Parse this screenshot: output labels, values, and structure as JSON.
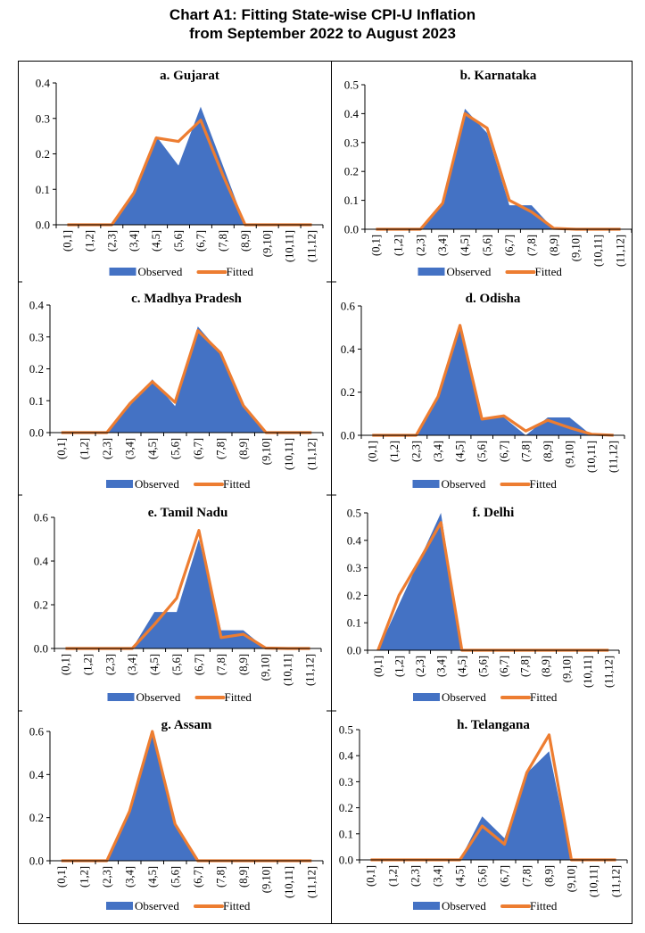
{
  "title_lines": [
    "Chart A1: Fitting State-wise CPI-U Inflation",
    "from September 2022 to August 2023"
  ],
  "colors": {
    "observed": "#4472C4",
    "fitted": "#ED7D31"
  },
  "chart_data": [
    {
      "type": "area",
      "title": "a. Gujarat",
      "categories": [
        "(0,1]",
        "(1,2]",
        "(2,3]",
        "(3,4]",
        "(4,5]",
        "(5,6]",
        "(6,7]",
        "(7,8]",
        "(8,9]",
        "(9,10]",
        "(10,11]",
        "(11,12]"
      ],
      "ylim": [
        0,
        0.4
      ],
      "yticks": [
        "0.0",
        "0.1",
        "0.2",
        "0.3",
        "0.4"
      ],
      "ytick_values": [
        0,
        0.1,
        0.2,
        0.3,
        0.4
      ],
      "series": [
        {
          "name": "Observed",
          "type": "area",
          "values": [
            0,
            0,
            0,
            0.083,
            0.25,
            0.167,
            0.333,
            0.167,
            0,
            0,
            0,
            0
          ]
        },
        {
          "name": "Fitted",
          "type": "line",
          "values": [
            0,
            0,
            0,
            0.09,
            0.245,
            0.235,
            0.295,
            0.14,
            0,
            0,
            0,
            0
          ]
        }
      ],
      "legend": [
        "Observed",
        "Fitted"
      ],
      "legend_position": "bottom"
    },
    {
      "type": "area",
      "title": "b. Karnataka",
      "categories": [
        "(0,1]",
        "(1,2]",
        "(2,3]",
        "(3,4]",
        "(4,5]",
        "(5,6]",
        "(6,7]",
        "(7,8]",
        "(8,9]",
        "(9,10]",
        "(10,11]",
        "(11,12]"
      ],
      "ylim": [
        0,
        0.5
      ],
      "yticks": [
        "0.0",
        "0.1",
        "0.2",
        "0.3",
        "0.4",
        "0.5"
      ],
      "ytick_values": [
        0,
        0.1,
        0.2,
        0.3,
        0.4,
        0.5
      ],
      "series": [
        {
          "name": "Observed",
          "type": "area",
          "values": [
            0,
            0,
            0,
            0.083,
            0.417,
            0.333,
            0.083,
            0.083,
            0,
            0,
            0,
            0
          ]
        },
        {
          "name": "Fitted",
          "type": "line",
          "values": [
            0,
            0,
            0,
            0.09,
            0.4,
            0.35,
            0.1,
            0.06,
            0.003,
            0,
            0,
            0
          ]
        }
      ],
      "legend": [
        "Observed",
        "Fitted"
      ],
      "legend_position": "bottom"
    },
    {
      "type": "area",
      "title": "c. Madhya Pradesh",
      "categories": [
        "(0,1]",
        "(1,2]",
        "(2,3]",
        "(3,4]",
        "(4,5]",
        "(5,6]",
        "(6,7]",
        "(7,8]",
        "(8,9]",
        "(9,10]",
        "(10,11]",
        "(11,12]"
      ],
      "ylim": [
        0,
        0.4
      ],
      "yticks": [
        "0.0",
        "0.1",
        "0.2",
        "0.3",
        "0.4"
      ],
      "ytick_values": [
        0,
        0.1,
        0.2,
        0.3,
        0.4
      ],
      "series": [
        {
          "name": "Observed",
          "type": "area",
          "values": [
            0,
            0,
            0,
            0.083,
            0.167,
            0.083,
            0.333,
            0.25,
            0.083,
            0,
            0,
            0
          ]
        },
        {
          "name": "Fitted",
          "type": "line",
          "values": [
            0,
            0,
            0,
            0.09,
            0.16,
            0.095,
            0.32,
            0.25,
            0.085,
            0,
            0,
            0
          ]
        }
      ],
      "legend": [
        "Observed",
        "Fitted"
      ],
      "legend_position": "bottom"
    },
    {
      "type": "area",
      "title": "d. Odisha",
      "categories": [
        "(0,1]",
        "(1,2]",
        "(2,3]",
        "(3,4]",
        "(4,5]",
        "(5,6]",
        "(6,7]",
        "(7,8]",
        "(8,9]",
        "(9,10]",
        "(10,11]",
        "(11,12]"
      ],
      "ylim": [
        0,
        0.6
      ],
      "yticks": [
        "0.0",
        "0.2",
        "0.4",
        "0.6"
      ],
      "ytick_values": [
        0,
        0.2,
        0.4,
        0.6
      ],
      "series": [
        {
          "name": "Observed",
          "type": "area",
          "values": [
            0,
            0,
            0,
            0.167,
            0.5,
            0.083,
            0.083,
            0,
            0.083,
            0.083,
            0,
            0
          ]
        },
        {
          "name": "Fitted",
          "type": "line",
          "values": [
            0,
            0,
            0,
            0.18,
            0.51,
            0.075,
            0.09,
            0.02,
            0.07,
            0.035,
            0.005,
            0
          ]
        }
      ],
      "legend": [
        "Observed",
        "Fitted"
      ],
      "legend_position": "bottom"
    },
    {
      "type": "area",
      "title": "e. Tamil Nadu",
      "categories": [
        "(0,1]",
        "(1,2]",
        "(2,3]",
        "(3,4]",
        "(4,5]",
        "(5,6]",
        "(6,7]",
        "(7,8]",
        "(8,9]",
        "(9,10]",
        "(10,11]",
        "(11,12]"
      ],
      "ylim": [
        0,
        0.6
      ],
      "yticks": [
        "0.0",
        "0.2",
        "0.4",
        "0.6"
      ],
      "ytick_values": [
        0,
        0.2,
        0.4,
        0.6
      ],
      "series": [
        {
          "name": "Observed",
          "type": "area",
          "values": [
            0,
            0,
            0,
            0,
            0.167,
            0.167,
            0.5,
            0.083,
            0.083,
            0,
            0,
            0
          ]
        },
        {
          "name": "Fitted",
          "type": "line",
          "values": [
            0,
            0,
            0,
            0,
            0.11,
            0.23,
            0.54,
            0.05,
            0.065,
            0.002,
            0,
            0
          ]
        }
      ],
      "legend": [
        "Observed",
        "Fitted"
      ],
      "legend_position": "bottom"
    },
    {
      "type": "area",
      "title": "f. Delhi",
      "categories": [
        "(0,1]",
        "(1,2]",
        "(2,3]",
        "(3,4]",
        "(4,5]",
        "(5,6]",
        "(6,7]",
        "(7,8]",
        "(8,9]",
        "(9,10]",
        "(10,11]",
        "(11,12]"
      ],
      "ylim": [
        0,
        0.5
      ],
      "yticks": [
        "0.0",
        "0.1",
        "0.2",
        "0.3",
        "0.4",
        "0.5"
      ],
      "ytick_values": [
        0,
        0.1,
        0.2,
        0.3,
        0.4,
        0.5
      ],
      "series": [
        {
          "name": "Observed",
          "type": "area",
          "values": [
            0,
            0.167,
            0.333,
            0.5,
            0,
            0,
            0,
            0,
            0,
            0,
            0,
            0
          ]
        },
        {
          "name": "Fitted",
          "type": "line",
          "values": [
            0,
            0.2,
            0.33,
            0.465,
            0,
            0,
            0,
            0,
            0,
            0,
            0,
            0
          ]
        }
      ],
      "legend": [
        "Observed",
        "Fitted"
      ],
      "legend_position": "bottom"
    },
    {
      "type": "area",
      "title": "g. Assam",
      "categories": [
        "(0,1]",
        "(1,2]",
        "(2,3]",
        "(3,4]",
        "(4,5]",
        "(5,6]",
        "(6,7]",
        "(7,8]",
        "(8,9]",
        "(9,10]",
        "(10,11]",
        "(11,12]"
      ],
      "ylim": [
        0,
        0.6
      ],
      "yticks": [
        "0.0",
        "0.2",
        "0.4",
        "0.6"
      ],
      "ytick_values": [
        0,
        0.2,
        0.4,
        0.6
      ],
      "series": [
        {
          "name": "Observed",
          "type": "area",
          "values": [
            0,
            0,
            0,
            0.222,
            0.583,
            0.167,
            0,
            0,
            0,
            0,
            0,
            0
          ]
        },
        {
          "name": "Fitted",
          "type": "line",
          "values": [
            0,
            0,
            0,
            0.23,
            0.6,
            0.17,
            0,
            0,
            0,
            0,
            0,
            0
          ]
        }
      ],
      "legend": [
        "Observed",
        "Fitted"
      ],
      "legend_position": "bottom"
    },
    {
      "type": "area",
      "title": "h. Telangana",
      "categories": [
        "(0,1]",
        "(1,2]",
        "(2,3]",
        "(3,4]",
        "(4,5]",
        "(5,6]",
        "(6,7]",
        "(7,8]",
        "(8,9]",
        "(9,10]",
        "(10,11]",
        "(11,12]"
      ],
      "ylim": [
        0,
        0.5
      ],
      "yticks": [
        "0.0",
        "0.1",
        "0.2",
        "0.3",
        "0.4",
        "0.5"
      ],
      "ytick_values": [
        0,
        0.1,
        0.2,
        0.3,
        0.4,
        0.5
      ],
      "series": [
        {
          "name": "Observed",
          "type": "area",
          "values": [
            0,
            0,
            0,
            0,
            0,
            0.167,
            0.083,
            0.333,
            0.417,
            0,
            0,
            0
          ]
        },
        {
          "name": "Fitted",
          "type": "line",
          "values": [
            0,
            0,
            0,
            0,
            0,
            0.13,
            0.06,
            0.335,
            0.48,
            0,
            0,
            0
          ]
        }
      ],
      "legend": [
        "Observed",
        "Fitted"
      ],
      "legend_position": "bottom"
    }
  ]
}
